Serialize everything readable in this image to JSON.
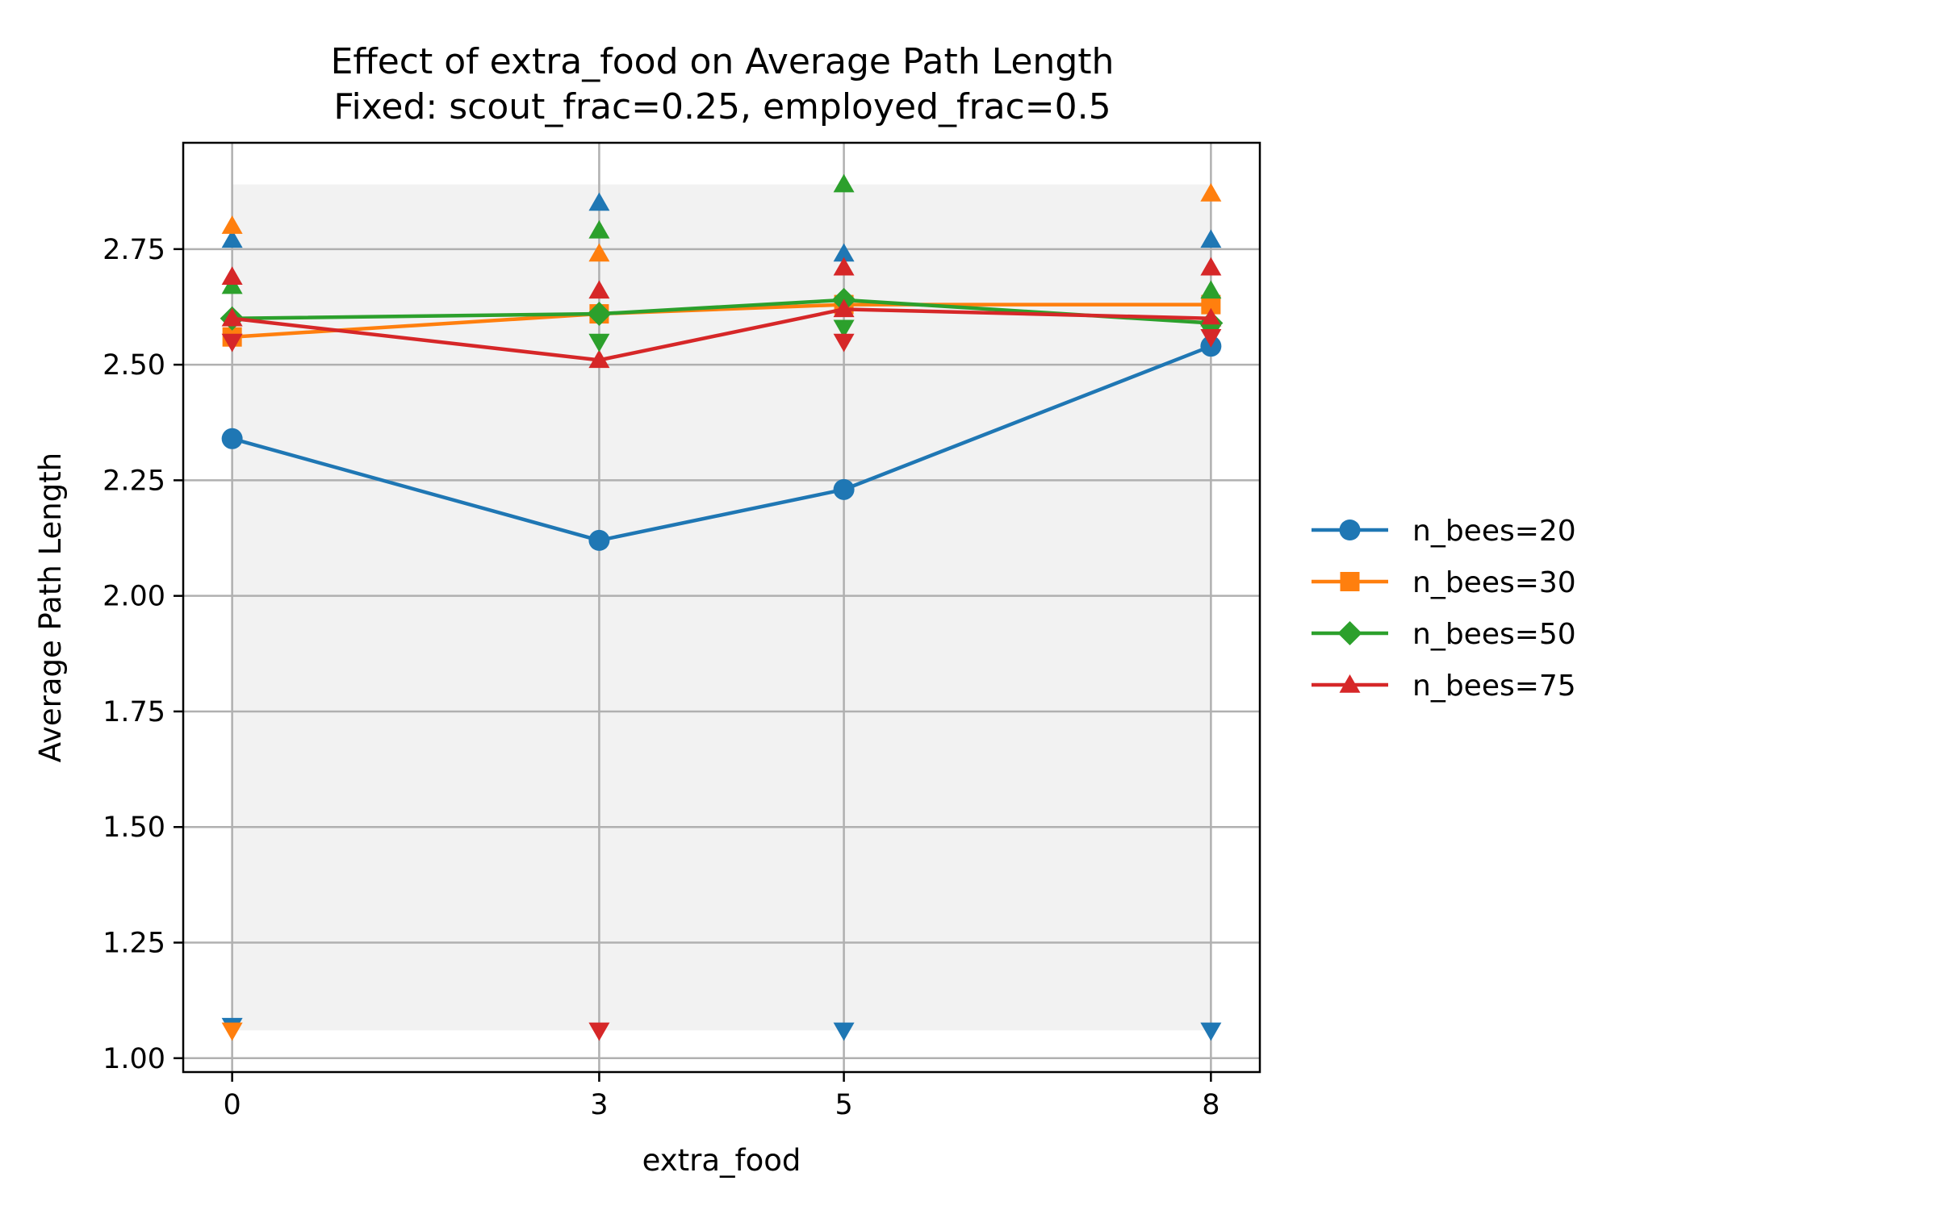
{
  "chart_data": {
    "type": "line",
    "title": "Effect of extra_food on Average Path Length",
    "subtitle": "Fixed: scout_frac=0.25, employed_frac=0.5",
    "xlabel": "extra_food",
    "ylabel": "Average Path Length",
    "x": [
      0,
      3,
      5,
      8
    ],
    "xticks": [
      "0",
      "3",
      "5",
      "8"
    ],
    "yticks": [
      "1.00",
      "1.25",
      "1.50",
      "1.75",
      "2.00",
      "2.25",
      "2.50",
      "2.75"
    ],
    "ylim": [
      0.97,
      2.98
    ],
    "grid": true,
    "legend_position": "right",
    "shaded_band": {
      "from": 1.06,
      "to": 2.89,
      "color": "#f2f2f2"
    },
    "series": [
      {
        "name": "n_bees=20",
        "color": "#1f77b4",
        "marker": "circle",
        "values": [
          2.34,
          2.12,
          2.23,
          2.54
        ],
        "max": [
          2.77,
          2.85,
          2.74,
          2.77
        ],
        "min": [
          1.07,
          null,
          1.06,
          1.06
        ]
      },
      {
        "name": "n_bees=30",
        "color": "#ff7f0e",
        "marker": "square",
        "values": [
          2.56,
          2.61,
          2.63,
          2.63
        ],
        "max": [
          2.8,
          2.74,
          null,
          2.87
        ],
        "min": [
          1.06,
          null,
          null,
          null
        ]
      },
      {
        "name": "n_bees=50",
        "color": "#2ca02c",
        "marker": "diamond",
        "values": [
          2.6,
          2.61,
          2.64,
          2.59
        ],
        "max": [
          2.67,
          2.79,
          2.89,
          2.66
        ],
        "min": [
          null,
          2.55,
          2.58,
          2.57
        ]
      },
      {
        "name": "n_bees=75",
        "color": "#d62728",
        "marker": "triangle",
        "values": [
          2.6,
          2.51,
          2.62,
          2.6
        ],
        "max": [
          2.69,
          2.66,
          2.71,
          2.71
        ],
        "min": [
          2.55,
          1.06,
          2.55,
          2.56
        ]
      }
    ]
  }
}
